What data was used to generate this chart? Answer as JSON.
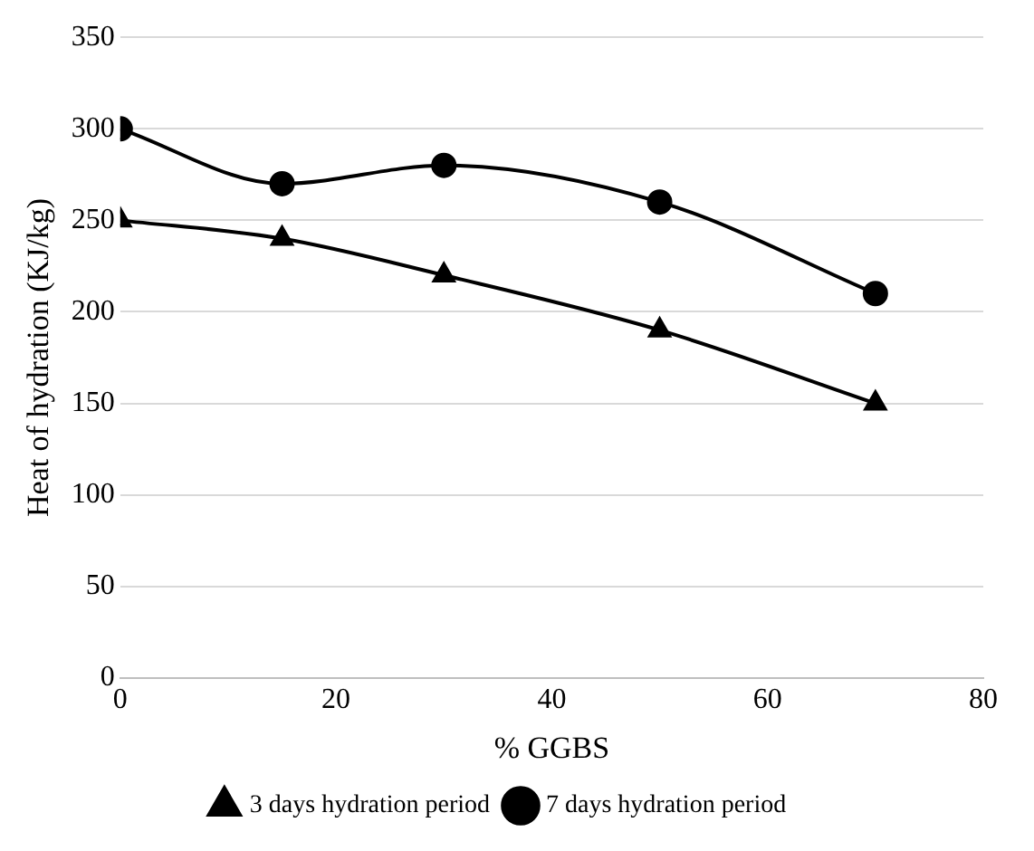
{
  "chart_data": {
    "type": "line",
    "xlabel": "% GGBS",
    "ylabel": "Heat of hydration (KJ/kg)",
    "x": [
      0,
      15,
      30,
      50,
      70
    ],
    "series": [
      {
        "name": "3 days hydration period",
        "color": "#000000",
        "marker": "triangle",
        "values": [
          250,
          240,
          220,
          190,
          150
        ]
      },
      {
        "name": "7 days hydration period",
        "color": "#000000",
        "marker": "circle",
        "values": [
          300,
          270,
          280,
          260,
          210
        ]
      }
    ],
    "xlim": [
      0,
      80
    ],
    "xticks": [
      0,
      20,
      40,
      60,
      80
    ],
    "ylim": [
      0,
      350
    ],
    "yticks": [
      0,
      50,
      100,
      150,
      200,
      250,
      300,
      350
    ],
    "grid": "y",
    "legend": "bottom",
    "line_style": "solid"
  }
}
